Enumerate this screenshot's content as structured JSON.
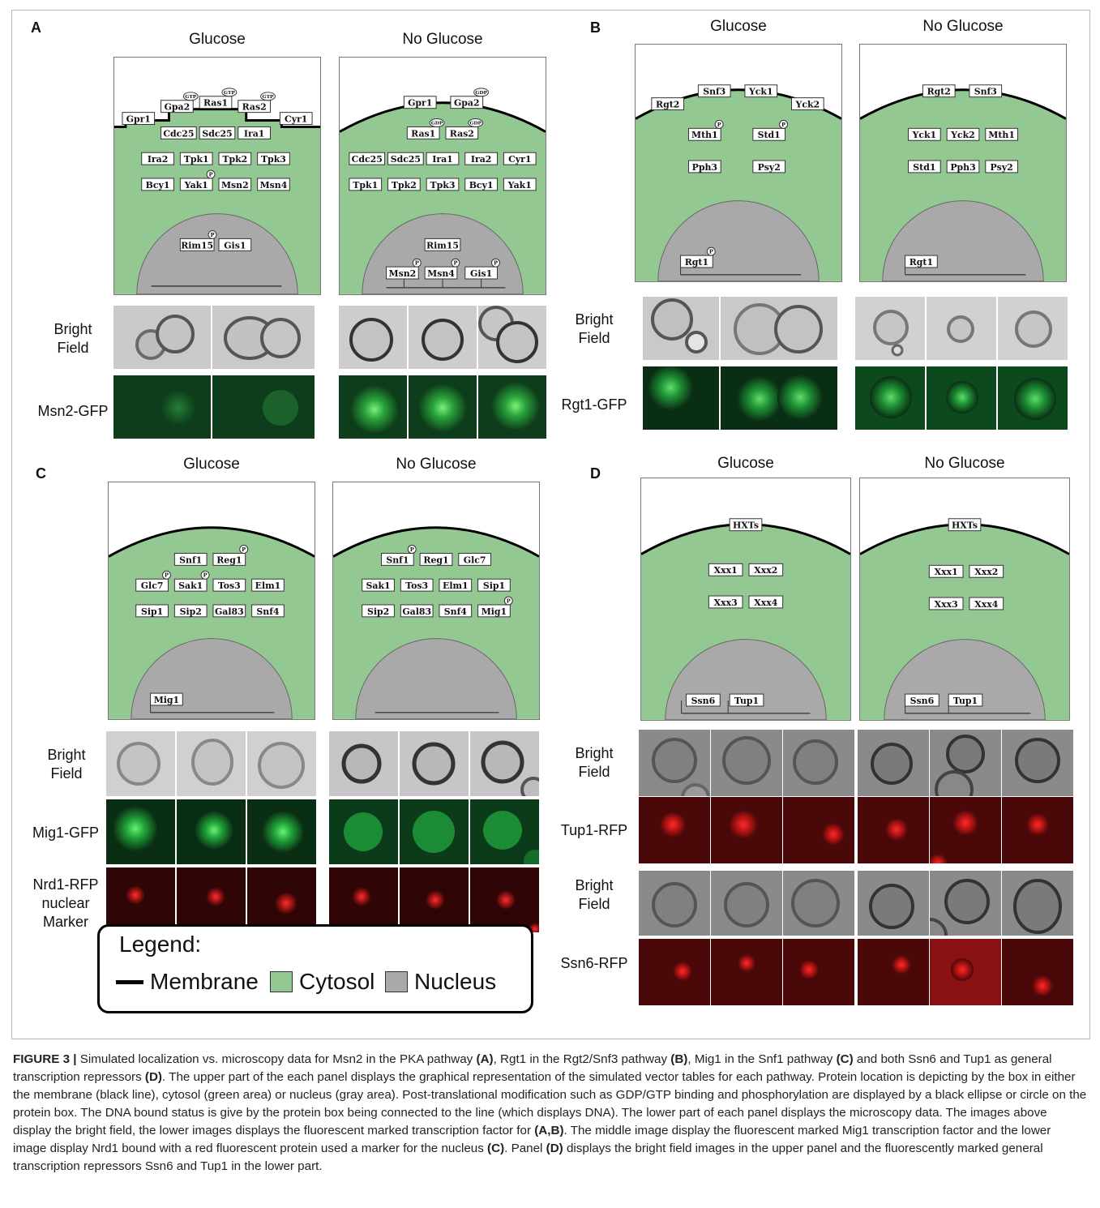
{
  "panels": {
    "A": {
      "letter": "A",
      "glucose": "Glucose",
      "noglucose": "No Glucose",
      "bf": "Bright\nField",
      "fl": "Msn2-GFP"
    },
    "B": {
      "letter": "B",
      "glucose": "Glucose",
      "noglucose": "No Glucose",
      "bf": "Bright\nField",
      "fl": "Rgt1-GFP"
    },
    "C": {
      "letter": "C",
      "glucose": "Glucose",
      "noglucose": "No Glucose",
      "bf": "Bright\nField",
      "fl": "Mig1-GFP",
      "fl2": "Nrd1-RFP\nnuclear\nMarker"
    },
    "D": {
      "letter": "D",
      "glucose": "Glucose",
      "noglucose": "No Glucose",
      "bf": "Bright\nField",
      "fl": "Tup1-RFP",
      "bf2": "Bright\nField",
      "fl2": "Ssn6-RFP"
    }
  },
  "proteins": {
    "A_g": [
      "Gpr1",
      "Gpa2",
      "Ras1",
      "Ras2",
      "Cyr1",
      "Cdc25",
      "Sdc25",
      "Ira1",
      "Ira2",
      "Tpk1",
      "Tpk2",
      "Tpk3",
      "Bcy1",
      "Yak1",
      "Msn2",
      "Msn4",
      "Rim15",
      "Gis1"
    ],
    "A_n": [
      "Gpr1",
      "Gpa2",
      "Ras1",
      "Ras2",
      "Cdc25",
      "Sdc25",
      "Ira1",
      "Ira2",
      "Cyr1",
      "Tpk1",
      "Tpk2",
      "Tpk3",
      "Bcy1",
      "Yak1",
      "Rim15",
      "Msn2",
      "Msn4",
      "Gis1"
    ],
    "B_g": [
      "Rgt2",
      "Snf3",
      "Yck1",
      "Yck2",
      "Mth1",
      "Std1",
      "Pph3",
      "Psy2",
      "Rgt1"
    ],
    "B_n": [
      "Rgt2",
      "Snf3",
      "Yck1",
      "Yck2",
      "Mth1",
      "Std1",
      "Pph3",
      "Psy2",
      "Rgt1"
    ],
    "C_g": [
      "Snf1",
      "Reg1",
      "Glc7",
      "Sak1",
      "Tos3",
      "Elm1",
      "Sip1",
      "Sip2",
      "Gal83",
      "Snf4",
      "Mig1"
    ],
    "C_n": [
      "Snf1",
      "Reg1",
      "Glc7",
      "Sak1",
      "Tos3",
      "Elm1",
      "Sip1",
      "Sip2",
      "Gal83",
      "Snf4",
      "Mig1"
    ],
    "D_g": [
      "HXTs",
      "Xxx1",
      "Xxx2",
      "Xxx3",
      "Xxx4",
      "Ssn6",
      "Tup1"
    ],
    "D_n": [
      "HXTs",
      "Xxx1",
      "Xxx2",
      "Xxx3",
      "Xxx4",
      "Ssn6",
      "Tup1"
    ]
  },
  "modifiers": {
    "gtp": "GTP",
    "gdp": "GDP",
    "p": "P"
  },
  "legend": {
    "title": "Legend:",
    "membrane": "Membrane",
    "cytosol": "Cytosol",
    "nucleus": "Nucleus"
  },
  "colors": {
    "cytosol": "#93c893",
    "nucleus": "#a9a9a9",
    "membrane": "#000000",
    "gfp": "#1aa540",
    "rfp": "#e01a1a"
  },
  "caption": {
    "fig": "FIGURE 3 |",
    "t1": " Simulated localization vs. microscopy data for Msn2 in the PKA pathway ",
    "r1": "(A)",
    "t2": ", Rgt1 in the Rgt2/Snf3 pathway ",
    "r2": "(B)",
    "t3": ", Mig1 in the Snf1 pathway ",
    "r3": "(C)",
    "t4": " and both Ssn6 and Tup1 as general transcription repressors ",
    "r4": "(D)",
    "t5": ". The upper part of the each panel displays the graphical representation of the simulated vector tables for each pathway. Protein location is depicting by the box in either the membrane (black line), cytosol (green area) or nucleus (gray area). Post-translational modification such as GDP/GTP binding and phosphorylation are displayed by a black ellipse or circle on the protein box. The DNA bound status is give by the protein box being connected to the line (which displays DNA). The lower part of each panel displays the microscopy data. The images above display the bright field, the lower images displays the fluorescent marked transcription factor for ",
    "r5": "(A,B)",
    "t6": ". The middle image display the fluorescent marked Mig1 transcription factor and the lower image display Nrd1 bound with a red fluorescent protein used a marker for the nucleus ",
    "r6": "(C)",
    "t7": ". Panel ",
    "r7": "(D)",
    "t8": " displays the bright field images in the upper panel and the fluorescently marked general transcription repressors Ssn6 and Tup1 in the lower part."
  }
}
